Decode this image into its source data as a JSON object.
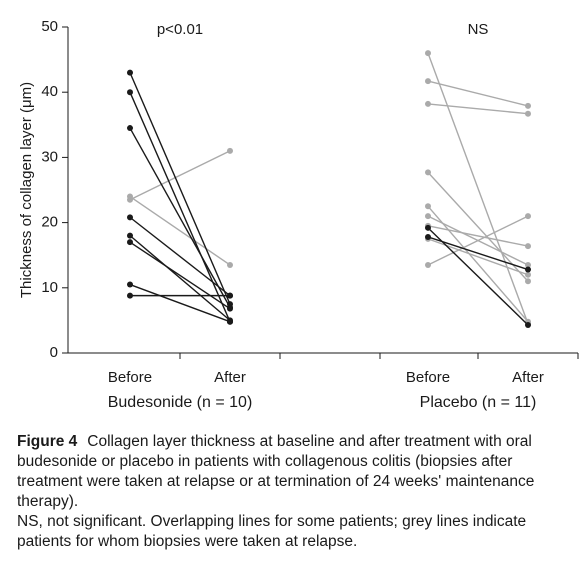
{
  "chart_data": {
    "type": "slope",
    "y_label": "Thickness of collagen layer (μm)",
    "ylim": [
      0,
      50
    ],
    "yticks": [
      0,
      10,
      20,
      30,
      40,
      50
    ],
    "groups": [
      {
        "name": "Budesonide (n = 10)",
        "annotation": "p<0.01",
        "categories": [
          "Before",
          "After"
        ],
        "before": [
          43,
          40,
          34.5,
          20.8,
          18,
          17,
          10.5,
          8.8,
          24,
          23.5
        ],
        "after": [
          7.5,
          4.8,
          7,
          8.8,
          5,
          6.8,
          4.8,
          8.8,
          13.5,
          31
        ],
        "colors": [
          "#1a1a1a",
          "#1a1a1a",
          "#1a1a1a",
          "#1a1a1a",
          "#1a1a1a",
          "#1a1a1a",
          "#1a1a1a",
          "#1a1a1a",
          "#aaaaaa",
          "#aaaaaa"
        ]
      },
      {
        "name": "Placebo (n = 11)",
        "annotation": "NS",
        "categories": [
          "Before",
          "After"
        ],
        "before": [
          46,
          41.7,
          38.2,
          27.7,
          22.5,
          21,
          19.5,
          13.5,
          17.5,
          19.2,
          17.8
        ],
        "after": [
          4.5,
          37.9,
          36.7,
          11,
          4.8,
          13.5,
          16.4,
          21,
          12,
          4.3,
          12.8
        ],
        "colors": [
          "#aaaaaa",
          "#aaaaaa",
          "#aaaaaa",
          "#aaaaaa",
          "#aaaaaa",
          "#aaaaaa",
          "#aaaaaa",
          "#aaaaaa",
          "#aaaaaa",
          "#1a1a1a",
          "#1a1a1a"
        ]
      }
    ]
  },
  "caption": {
    "label": "Figure 4",
    "text": "Collagen layer thickness at baseline and after treatment with oral budesonide or placebo in patients with collagenous colitis (biopsies after treatment were taken at relapse or at termination of 24 weeks' maintenance therapy).",
    "note": "NS, not significant. Overlapping lines for some patients; grey lines indicate patients for whom biopsies were taken at relapse."
  }
}
